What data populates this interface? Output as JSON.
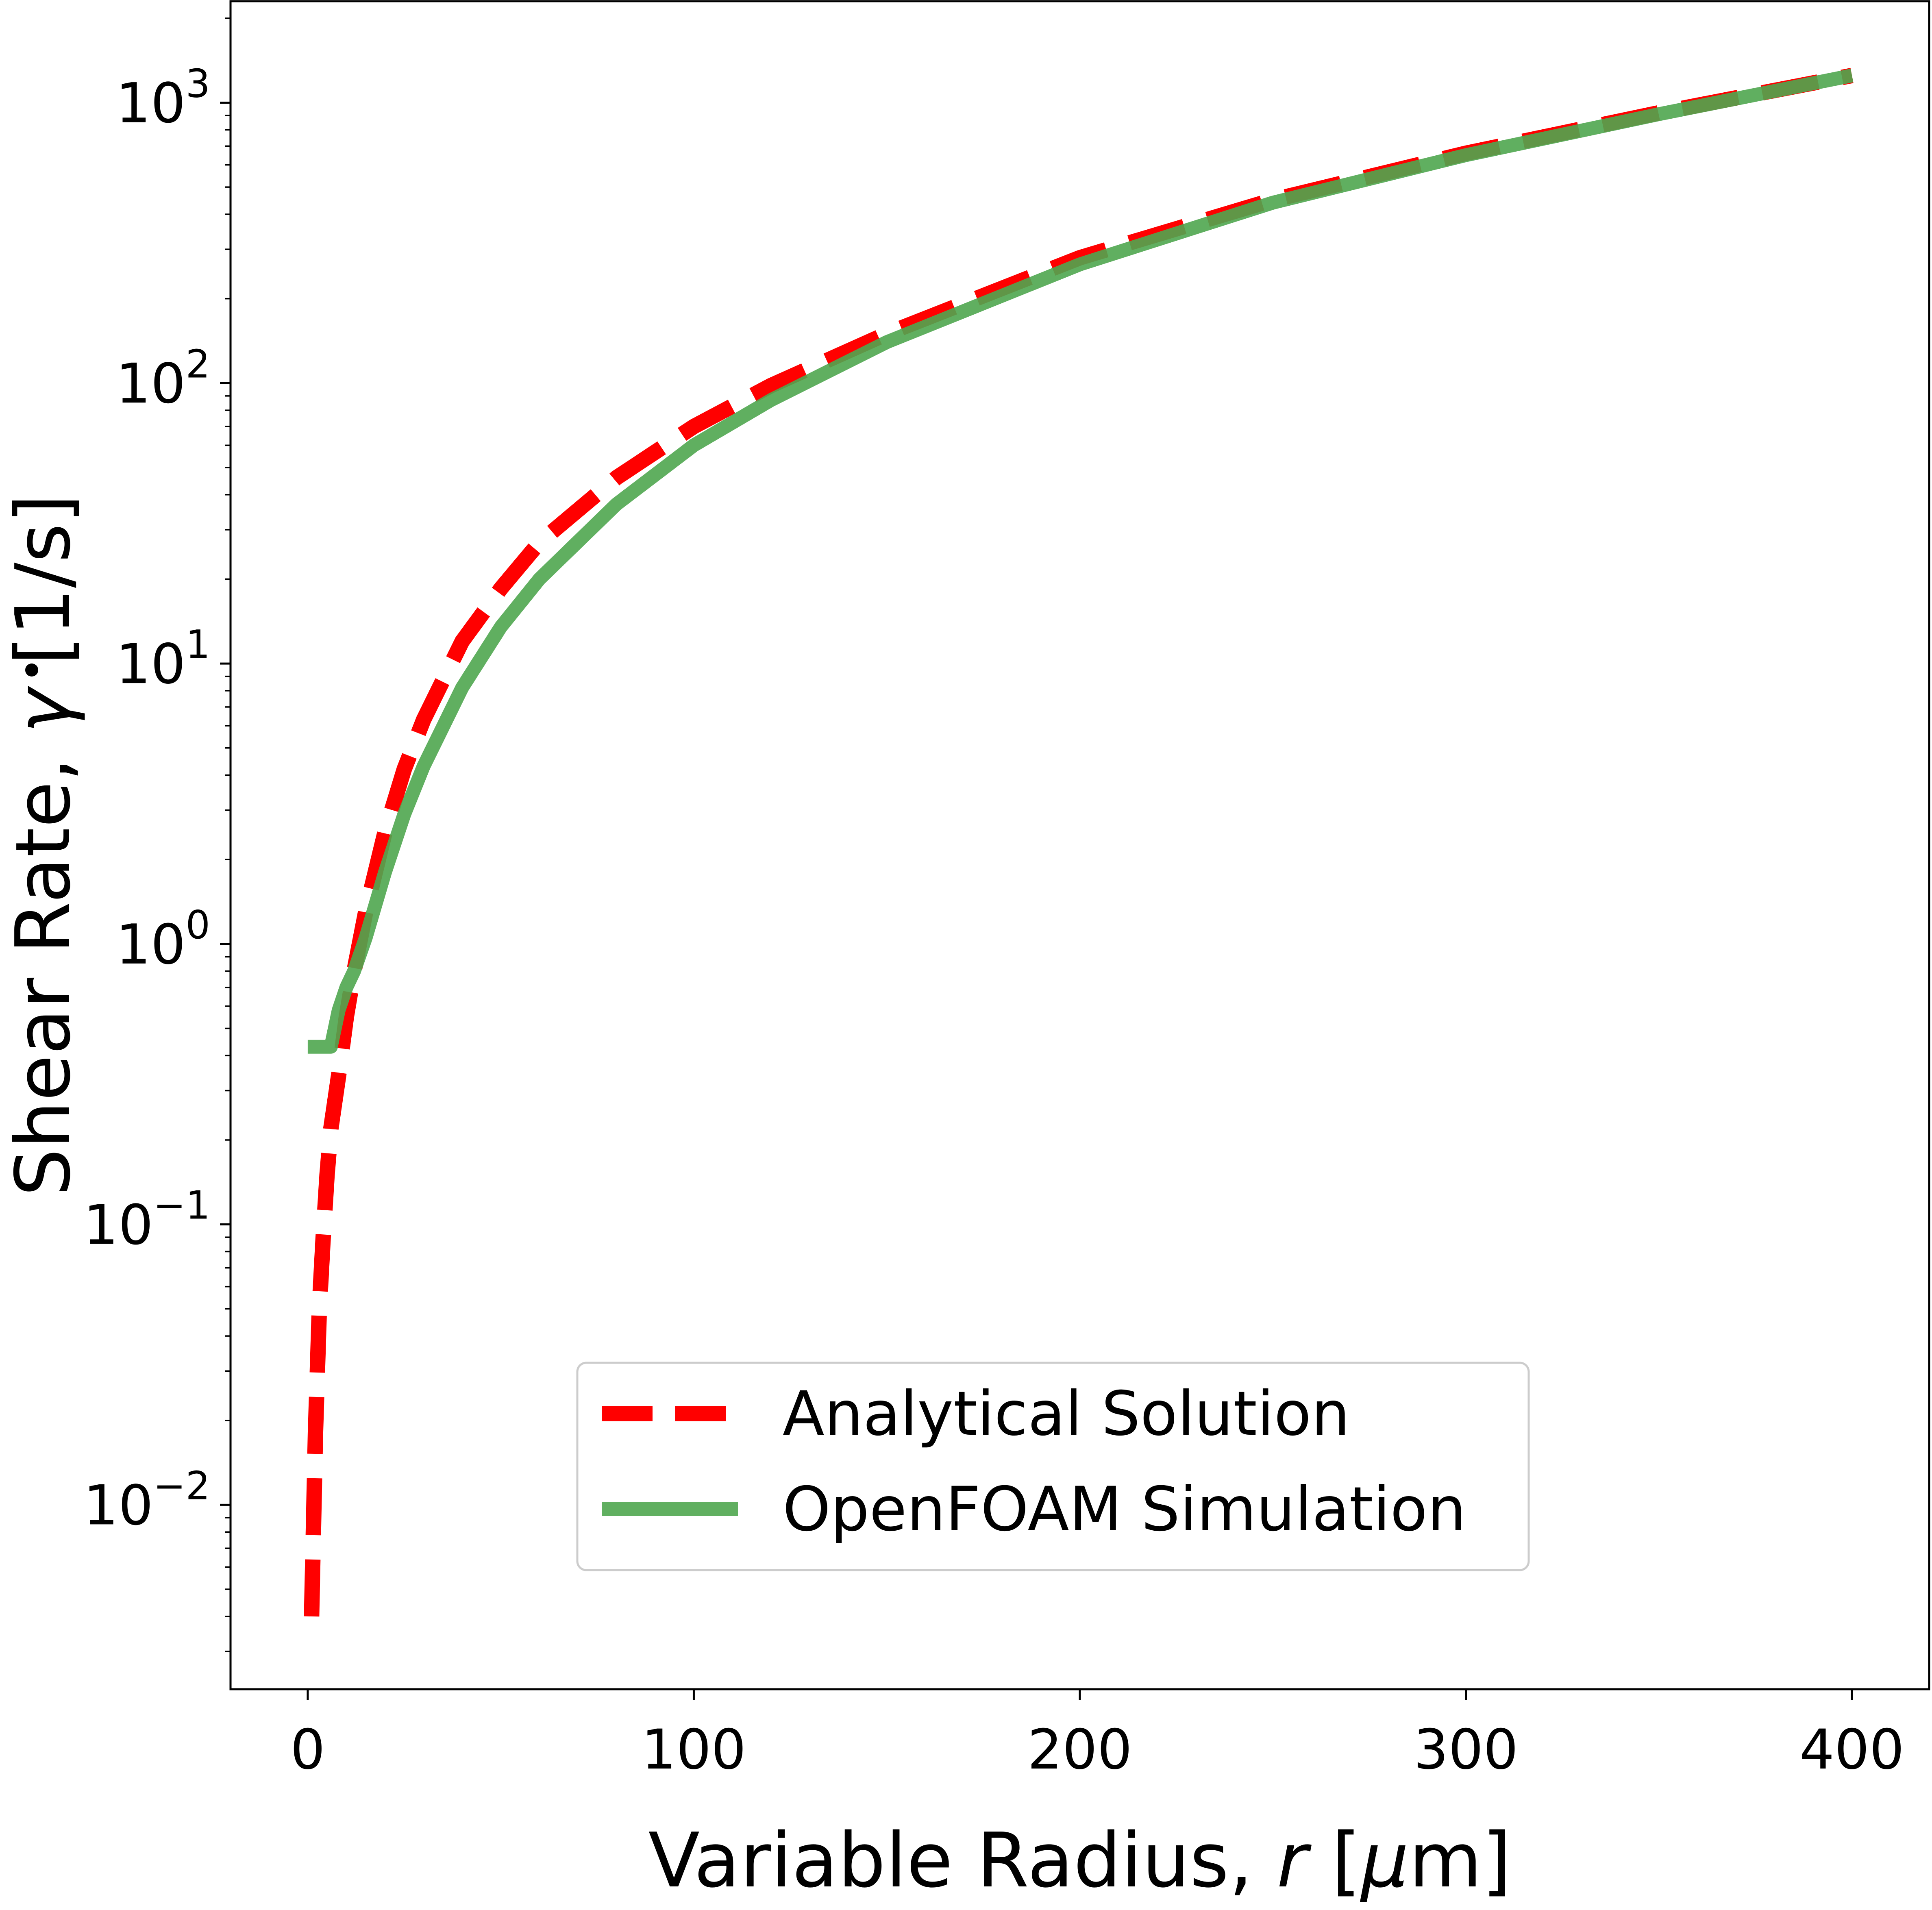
{
  "chart_data": {
    "type": "line",
    "title": "",
    "xlabel": {
      "prefix": "Variable Radius, ",
      "variable": "r",
      "unit_open": " [",
      "unit_symbol": "μ",
      "unit_rest": "m]"
    },
    "ylabel": {
      "prefix": "Shear Rate, ",
      "variable": "γ",
      "unit": " [1/s]"
    },
    "xlim": [
      -20,
      420
    ],
    "ylim": [
      0.0022,
      2300
    ],
    "yscale": "log",
    "grid": false,
    "legend_position": "lower-right",
    "x_ticks": [
      {
        "value": 0,
        "label": "0"
      },
      {
        "value": 100,
        "label": "100"
      },
      {
        "value": 200,
        "label": "200"
      },
      {
        "value": 300,
        "label": "300"
      },
      {
        "value": 400,
        "label": "400"
      }
    ],
    "y_ticks": [
      {
        "value": 0.01,
        "base": "10",
        "exp": "−2"
      },
      {
        "value": 0.1,
        "base": "10",
        "exp": "−1"
      },
      {
        "value": 1,
        "base": "10",
        "exp": "0"
      },
      {
        "value": 10,
        "base": "10",
        "exp": "1"
      },
      {
        "value": 100,
        "base": "10",
        "exp": "2"
      },
      {
        "value": 1000,
        "base": "10",
        "exp": "3"
      }
    ],
    "series": [
      {
        "name": "Analytical Solution",
        "color": "#ff0000",
        "style": "dashed",
        "x": [
          1,
          2,
          3,
          4,
          5,
          6,
          8,
          10,
          12,
          15,
          20,
          25,
          30,
          40,
          50,
          60,
          80,
          100,
          120,
          150,
          200,
          250,
          300,
          350,
          400
        ],
        "y": [
          0.004,
          0.018,
          0.05,
          0.09,
          0.15,
          0.22,
          0.34,
          0.55,
          0.8,
          1.3,
          2.5,
          4.2,
          6.3,
          12.0,
          18.5,
          27,
          46,
          70,
          98,
          150,
          280,
          450,
          660,
          920,
          1250
        ]
      },
      {
        "name": "OpenFOAM Simulation",
        "color": "#4fa64f",
        "style": "solid",
        "x": [
          0,
          2,
          4,
          6,
          8,
          10,
          12,
          15,
          20,
          25,
          30,
          40,
          50,
          60,
          80,
          100,
          120,
          150,
          200,
          250,
          300,
          350,
          400
        ],
        "y": [
          0.43,
          0.43,
          0.43,
          0.43,
          0.58,
          0.7,
          0.8,
          1.05,
          1.8,
          2.9,
          4.3,
          8.2,
          13.5,
          20,
          37,
          60,
          87,
          140,
          265,
          440,
          650,
          910,
          1250
        ]
      }
    ]
  }
}
